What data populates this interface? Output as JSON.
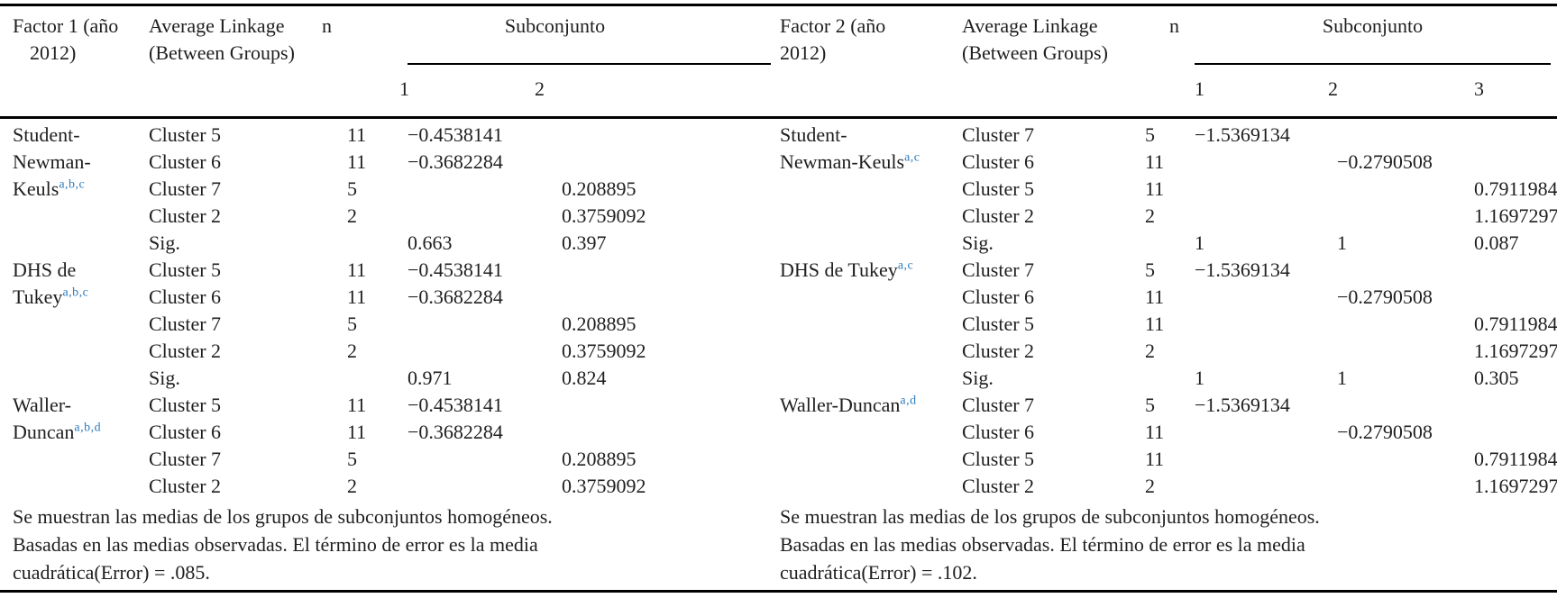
{
  "page": {
    "background": "#ffffff",
    "text_color": "#1f1f1f",
    "footnote_link_blue": "#2e7cbe",
    "rule_color": "#000000"
  },
  "panels": [
    {
      "name": "factor-1",
      "header": {
        "factor": [
          "Factor 1 (año",
          "2012)"
        ],
        "linkage": [
          "Average Linkage",
          "(Between Groups)"
        ],
        "n": "n",
        "subset_title": "Subconjunto",
        "subset_columns": [
          "1",
          "2"
        ]
      },
      "rows": [
        {
          "method": "Student-",
          "sup": "",
          "cluster": "Cluster 5",
          "n": "11",
          "subsets": [
            "−0.4538141",
            ""
          ]
        },
        {
          "method": "Newman-",
          "sup": "",
          "cluster": "Cluster 6",
          "n": "11",
          "subsets": [
            "−0.3682284",
            ""
          ]
        },
        {
          "method": "Keuls",
          "sup": "a,b,c",
          "cluster": "Cluster 7",
          "n": "5",
          "subsets": [
            "",
            "0.208895"
          ]
        },
        {
          "method": "",
          "sup": "",
          "cluster": "Cluster 2",
          "n": "2",
          "subsets": [
            "",
            "0.3759092"
          ]
        },
        {
          "method": "",
          "sup": "",
          "cluster": "Sig.",
          "n": "",
          "subsets": [
            "0.663",
            "0.397"
          ]
        },
        {
          "method": "DHS de",
          "sup": "",
          "cluster": "Cluster 5",
          "n": "11",
          "subsets": [
            "−0.4538141",
            ""
          ]
        },
        {
          "method": "Tukey",
          "sup": "a,b,c",
          "cluster": "Cluster 6",
          "n": "11",
          "subsets": [
            "−0.3682284",
            ""
          ]
        },
        {
          "method": "",
          "sup": "",
          "cluster": "Cluster 7",
          "n": "5",
          "subsets": [
            "",
            "0.208895"
          ]
        },
        {
          "method": "",
          "sup": "",
          "cluster": "Cluster 2",
          "n": "2",
          "subsets": [
            "",
            "0.3759092"
          ]
        },
        {
          "method": "",
          "sup": "",
          "cluster": "Sig.",
          "n": "",
          "subsets": [
            "0.971",
            "0.824"
          ]
        },
        {
          "method": "Waller-",
          "sup": "",
          "cluster": "Cluster 5",
          "n": "11",
          "subsets": [
            "−0.4538141",
            ""
          ]
        },
        {
          "method": "Duncan",
          "sup": "a,b,d",
          "cluster": "Cluster 6",
          "n": "11",
          "subsets": [
            "−0.3682284",
            ""
          ]
        },
        {
          "method": "",
          "sup": "",
          "cluster": "Cluster 7",
          "n": "5",
          "subsets": [
            "",
            "0.208895"
          ]
        },
        {
          "method": "",
          "sup": "",
          "cluster": "Cluster 2",
          "n": "2",
          "subsets": [
            "",
            "0.3759092"
          ]
        }
      ],
      "footnotes": [
        "Se muestran las medias de los grupos de subconjuntos homogéneos.",
        "Basadas en las medias observadas. El término de error es la media",
        "cuadrática(Error) = .085."
      ]
    },
    {
      "name": "factor-2",
      "header": {
        "factor": [
          "Factor 2 (año",
          "2012)"
        ],
        "linkage": [
          "Average Linkage",
          "(Between Groups)"
        ],
        "n": "n",
        "subset_title": "Subconjunto",
        "subset_columns": [
          "1",
          "2",
          "3"
        ]
      },
      "rows": [
        {
          "method": "Student-",
          "sup": "",
          "cluster": "Cluster 7",
          "n": "5",
          "subsets": [
            "−1.5369134",
            "",
            ""
          ]
        },
        {
          "method": "Newman-Keuls",
          "sup": "a,c",
          "cluster": "Cluster 6",
          "n": "11",
          "subsets": [
            "",
            "−0.2790508",
            ""
          ]
        },
        {
          "method": "",
          "sup": "",
          "cluster": "Cluster 5",
          "n": "11",
          "subsets": [
            "",
            "",
            "0.7911984"
          ]
        },
        {
          "method": "",
          "sup": "",
          "cluster": "Cluster 2",
          "n": "2",
          "subsets": [
            "",
            "",
            "1.1697297"
          ]
        },
        {
          "method": "",
          "sup": "",
          "cluster": "Sig.",
          "n": "",
          "subsets": [
            "1",
            "1",
            "0.087"
          ]
        },
        {
          "method": "DHS de Tukey",
          "sup": "a,c",
          "cluster": "Cluster 7",
          "n": "5",
          "subsets": [
            "−1.5369134",
            "",
            ""
          ]
        },
        {
          "method": "",
          "sup": "",
          "cluster": "Cluster 6",
          "n": "11",
          "subsets": [
            "",
            "−0.2790508",
            ""
          ]
        },
        {
          "method": "",
          "sup": "",
          "cluster": "Cluster 5",
          "n": "11",
          "subsets": [
            "",
            "",
            "0.7911984"
          ]
        },
        {
          "method": "",
          "sup": "",
          "cluster": "Cluster 2",
          "n": "2",
          "subsets": [
            "",
            "",
            "1.1697297"
          ]
        },
        {
          "method": "",
          "sup": "",
          "cluster": "Sig.",
          "n": "",
          "subsets": [
            "1",
            "1",
            "0.305"
          ]
        },
        {
          "method": "Waller-Duncan",
          "sup": "a,d",
          "cluster": "Cluster 7",
          "n": "5",
          "subsets": [
            "−1.5369134",
            "",
            ""
          ]
        },
        {
          "method": "",
          "sup": "",
          "cluster": "Cluster 6",
          "n": "11",
          "subsets": [
            "",
            "−0.2790508",
            ""
          ]
        },
        {
          "method": "",
          "sup": "",
          "cluster": "Cluster 5",
          "n": "11",
          "subsets": [
            "",
            "",
            "0.7911984"
          ]
        },
        {
          "method": "",
          "sup": "",
          "cluster": "Cluster 2",
          "n": "2",
          "subsets": [
            "",
            "",
            "1.1697297"
          ]
        }
      ],
      "footnotes": [
        "Se muestran las medias de los grupos de subconjuntos homogéneos.",
        "Basadas en las medias observadas. El término de error es la media",
        "cuadrática(Error) = .102."
      ]
    }
  ]
}
